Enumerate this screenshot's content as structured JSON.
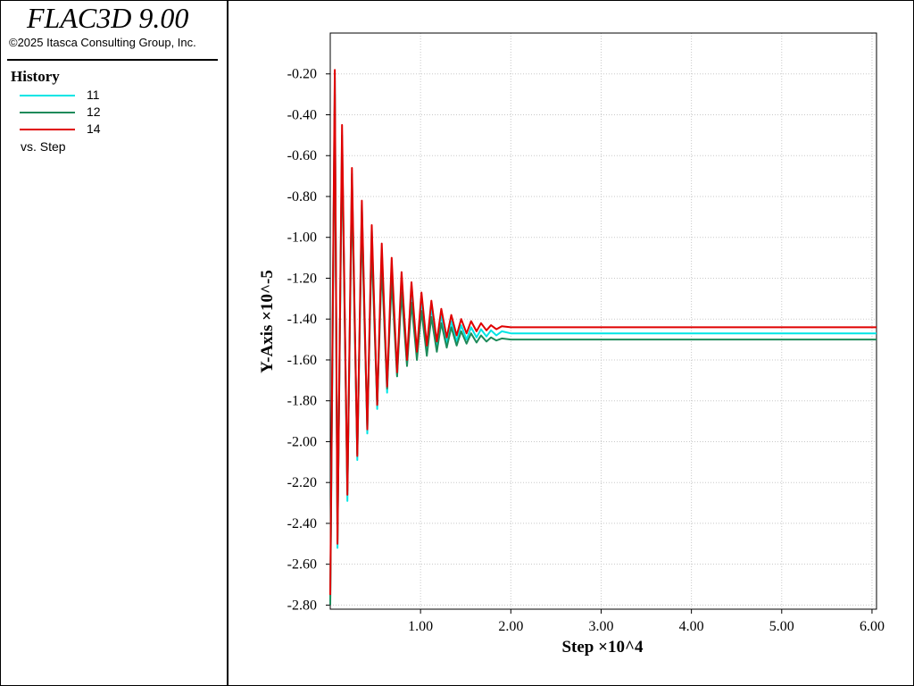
{
  "header": {
    "app_title": "FLAC3D 9.00",
    "copyright": "©2025 Itasca Consulting Group, Inc."
  },
  "legend": {
    "heading": "History",
    "items": [
      {
        "label": "11",
        "color": "#00e5e5"
      },
      {
        "label": "12",
        "color": "#1e8a5a"
      },
      {
        "label": "14",
        "color": "#e00000"
      }
    ],
    "versus": "vs. Step"
  },
  "chart_data": {
    "type": "line",
    "xlabel": "Step ×10^4",
    "ylabel": "Y-Axis ×10^-5",
    "xlim": [
      0,
      6.05
    ],
    "ylim": [
      -2.82,
      0.0
    ],
    "x_ticks": [
      "1.00",
      "2.00",
      "3.00",
      "4.00",
      "5.00",
      "6.00"
    ],
    "x_tick_values": [
      1,
      2,
      3,
      4,
      5,
      6
    ],
    "y_ticks": [
      "-0.20",
      "-0.40",
      "-0.60",
      "-0.80",
      "-1.00",
      "-1.20",
      "-1.40",
      "-1.60",
      "-1.80",
      "-2.00",
      "-2.20",
      "-2.40",
      "-2.60",
      "-2.80"
    ],
    "y_tick_values": [
      -0.2,
      -0.4,
      -0.6,
      -0.8,
      -1.0,
      -1.2,
      -1.4,
      -1.6,
      -1.8,
      -2.0,
      -2.2,
      -2.4,
      -2.6,
      -2.8
    ],
    "grid": true,
    "series": [
      {
        "name": "11",
        "color": "#00e5e5",
        "final_value": -1.47,
        "x": [
          0,
          0.05,
          0.08,
          0.13,
          0.19,
          0.24,
          0.3,
          0.35,
          0.41,
          0.46,
          0.52,
          0.57,
          0.63,
          0.68,
          0.74,
          0.79,
          0.85,
          0.9,
          0.96,
          1.01,
          1.07,
          1.12,
          1.18,
          1.23,
          1.29,
          1.34,
          1.4,
          1.45,
          1.51,
          1.56,
          1.62,
          1.67,
          1.73,
          1.78,
          1.84,
          1.9,
          2.0,
          2.3,
          6.05
        ],
        "y": [
          -2.78,
          -0.22,
          -2.52,
          -0.5,
          -2.29,
          -0.69,
          -2.09,
          -0.84,
          -1.96,
          -0.96,
          -1.84,
          -1.06,
          -1.76,
          -1.13,
          -1.68,
          -1.2,
          -1.62,
          -1.25,
          -1.58,
          -1.3,
          -1.56,
          -1.34,
          -1.54,
          -1.38,
          -1.52,
          -1.41,
          -1.51,
          -1.43,
          -1.5,
          -1.44,
          -1.49,
          -1.45,
          -1.485,
          -1.455,
          -1.48,
          -1.46,
          -1.47,
          -1.47,
          -1.47
        ]
      },
      {
        "name": "12",
        "color": "#1e8a5a",
        "final_value": -1.5,
        "x": [
          0,
          0.05,
          0.08,
          0.13,
          0.19,
          0.24,
          0.3,
          0.35,
          0.41,
          0.46,
          0.52,
          0.57,
          0.63,
          0.68,
          0.74,
          0.79,
          0.85,
          0.9,
          0.96,
          1.01,
          1.07,
          1.12,
          1.18,
          1.23,
          1.29,
          1.34,
          1.4,
          1.45,
          1.51,
          1.56,
          1.62,
          1.67,
          1.73,
          1.78,
          1.84,
          1.9,
          2.0,
          2.3,
          6.05
        ],
        "y": [
          -2.8,
          -0.3,
          -2.48,
          -0.56,
          -2.24,
          -0.77,
          -2.06,
          -0.93,
          -1.93,
          -1.05,
          -1.82,
          -1.14,
          -1.74,
          -1.21,
          -1.68,
          -1.27,
          -1.63,
          -1.32,
          -1.6,
          -1.36,
          -1.58,
          -1.39,
          -1.56,
          -1.42,
          -1.54,
          -1.44,
          -1.53,
          -1.46,
          -1.52,
          -1.47,
          -1.515,
          -1.48,
          -1.51,
          -1.49,
          -1.505,
          -1.495,
          -1.5,
          -1.5,
          -1.5
        ]
      },
      {
        "name": "14",
        "color": "#e00000",
        "final_value": -1.44,
        "x": [
          0,
          0.05,
          0.08,
          0.13,
          0.19,
          0.24,
          0.3,
          0.35,
          0.41,
          0.46,
          0.52,
          0.57,
          0.63,
          0.68,
          0.74,
          0.79,
          0.85,
          0.9,
          0.96,
          1.01,
          1.07,
          1.12,
          1.18,
          1.23,
          1.29,
          1.34,
          1.4,
          1.45,
          1.51,
          1.56,
          1.62,
          1.67,
          1.73,
          1.78,
          1.84,
          1.9,
          2.0,
          2.3,
          6.05
        ],
        "y": [
          -2.75,
          -0.18,
          -2.5,
          -0.45,
          -2.26,
          -0.66,
          -2.07,
          -0.82,
          -1.94,
          -0.94,
          -1.82,
          -1.03,
          -1.73,
          -1.1,
          -1.66,
          -1.17,
          -1.6,
          -1.22,
          -1.56,
          -1.27,
          -1.53,
          -1.31,
          -1.51,
          -1.35,
          -1.49,
          -1.38,
          -1.48,
          -1.4,
          -1.47,
          -1.41,
          -1.46,
          -1.42,
          -1.455,
          -1.43,
          -1.45,
          -1.435,
          -1.44,
          -1.44,
          -1.44
        ]
      }
    ]
  }
}
